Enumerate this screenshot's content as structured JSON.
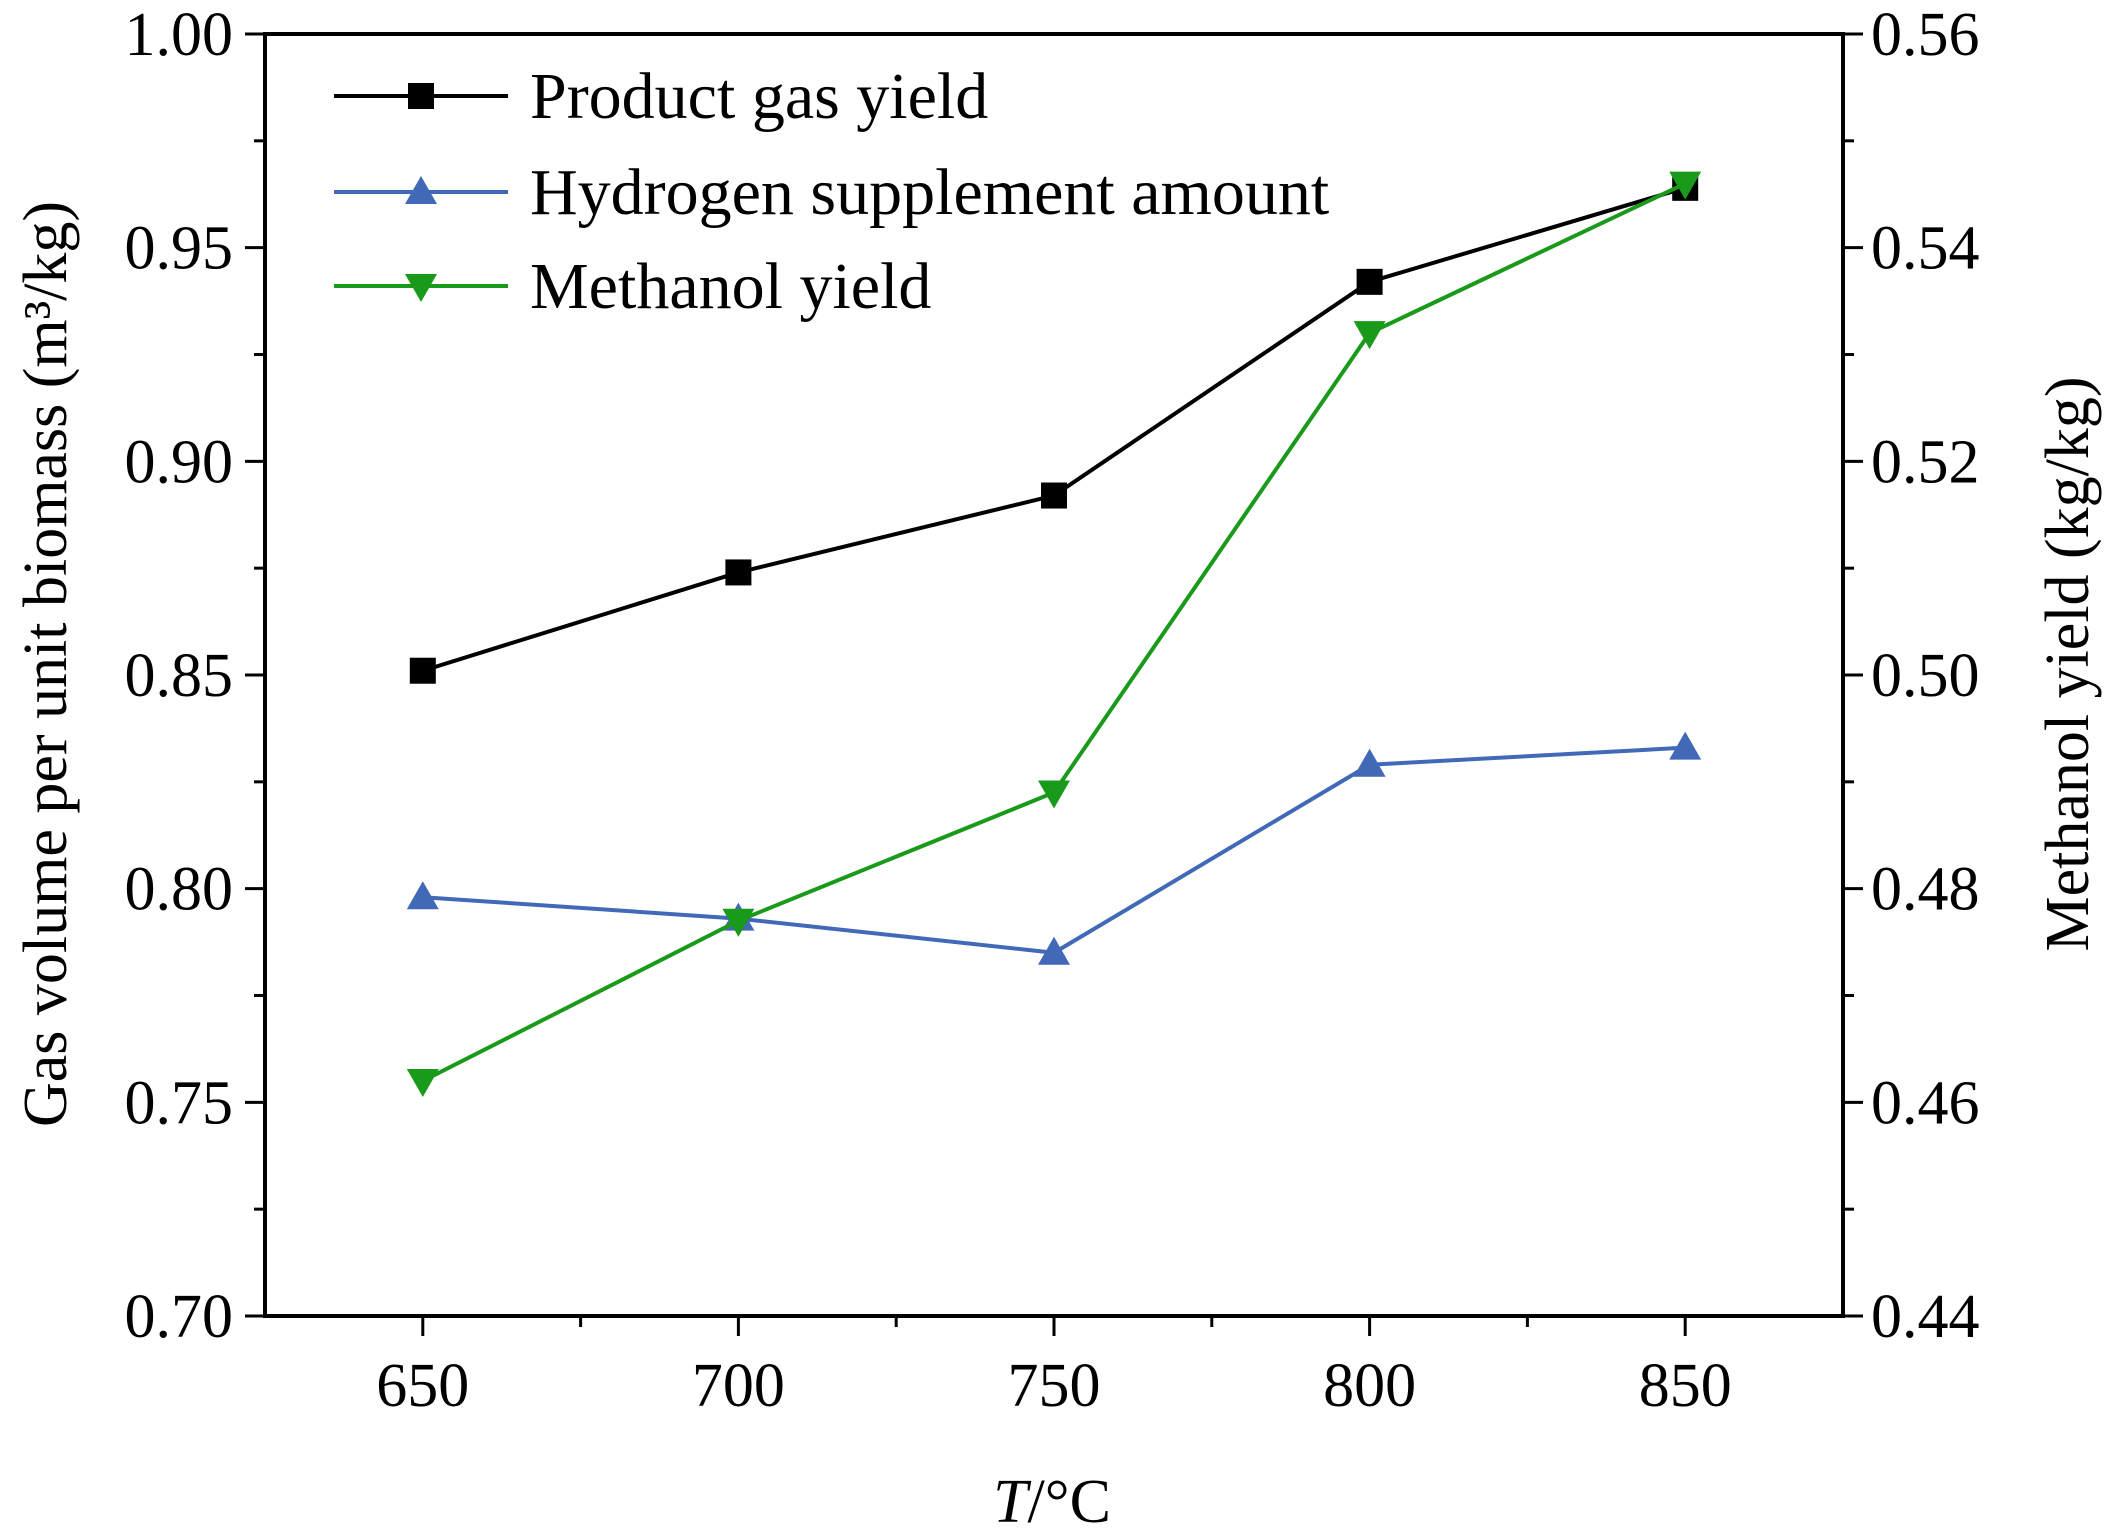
{
  "chart_data": {
    "type": "line",
    "x": [
      650,
      700,
      750,
      800,
      850
    ],
    "xlabel_italic": "T",
    "xlabel_rest": "/°C",
    "xlim": [
      625,
      875
    ],
    "xticks": [
      "650",
      "700",
      "750",
      "800",
      "850"
    ],
    "ylabel_left": "Gas volume per unit biomass (m³/kg)",
    "ylim_left": [
      0.7,
      1.0
    ],
    "yticks_left": [
      "0.70",
      "0.75",
      "0.80",
      "0.85",
      "0.90",
      "0.95",
      "1.00"
    ],
    "ylabel_right": "Methanol yield (kg/kg)",
    "ylim_right": [
      0.44,
      0.56
    ],
    "yticks_right": [
      "0.44",
      "0.46",
      "0.48",
      "0.50",
      "0.52",
      "0.54",
      "0.56"
    ],
    "legend_position": "top-left",
    "series": [
      {
        "name": "Product gas yield",
        "axis": "left",
        "color": "#000000",
        "marker": "square",
        "values": [
          0.851,
          0.874,
          0.892,
          0.942,
          0.964
        ]
      },
      {
        "name": "Hydrogen supplement amount",
        "axis": "left",
        "color": "#4169b8",
        "marker": "triangle-up",
        "values": [
          0.798,
          0.793,
          0.785,
          0.829,
          0.833
        ]
      },
      {
        "name": "Methanol yield",
        "axis": "right",
        "color": "#1a9a1a",
        "marker": "triangle-down",
        "values": [
          0.462,
          0.477,
          0.489,
          0.532,
          0.546
        ]
      }
    ]
  }
}
